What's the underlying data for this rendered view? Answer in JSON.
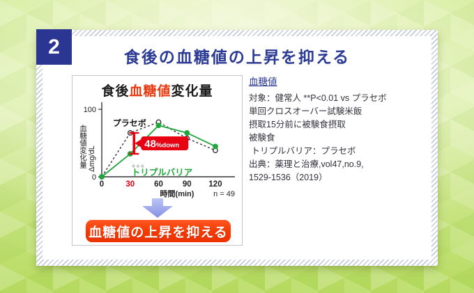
{
  "slide": {
    "badge_number": "2",
    "title": "食後の血糖値の上昇を抑える"
  },
  "chart_panel": {
    "title": {
      "pre": "食後",
      "highlight": "血糖値",
      "post": "変化量"
    },
    "button_label": "血糖値の上昇を抑える"
  },
  "chart_data": {
    "type": "line",
    "title": "食後血糖値変化量",
    "x": [
      0,
      30,
      60,
      90,
      120
    ],
    "x_tick_labels": [
      "0",
      "30",
      "60",
      "90",
      "120"
    ],
    "highlight_x": 30,
    "xlabel": "時間(min)",
    "ylabel_vertical": "血糖値変化量",
    "ylabel_unit": "Δmg/dL",
    "ylim": [
      0,
      100
    ],
    "y_ticks": [
      {
        "v": 0,
        "label": "0"
      },
      {
        "v": 100,
        "label": "100"
      }
    ],
    "n_label": "n = 49",
    "grid": false,
    "legend_position": "inline-labels",
    "series": [
      {
        "name": "プラセボ",
        "color": "#333333",
        "style": "dashed",
        "marker": "open-circle",
        "values": [
          0,
          65,
          81,
          57,
          39
        ]
      },
      {
        "name": "トリプルバリア",
        "color": "#1fa73c",
        "style": "solid",
        "marker": "filled-circle",
        "values": [
          0,
          34,
          76,
          65,
          45
        ],
        "note": "※※※"
      }
    ],
    "annotation": {
      "text_big": "48",
      "text_small": "%down",
      "at_x": 30,
      "color": "#e60012"
    }
  },
  "details": {
    "heading": "血糖値",
    "lines": [
      "対象：健常人 **P<0.01 vs プラセボ",
      "単回クロスオーバー試験米飯",
      "摂取15分前に被験食摂取",
      "被験食",
      " トリプルバリア：プラセボ",
      "出典：薬理と治療,vol47,no.9,",
      "1529-1536（2019）"
    ]
  },
  "colors": {
    "accent_navy": "#2b3592",
    "title_navy": "#2b3a94",
    "accent_red": "#e60012",
    "chart_title_red": "#e8380d",
    "accent_green": "#1fa73c",
    "button_orange": "#f43800",
    "arrow_periwinkle": "#8c96e8",
    "background_green": "#c9e57e"
  }
}
